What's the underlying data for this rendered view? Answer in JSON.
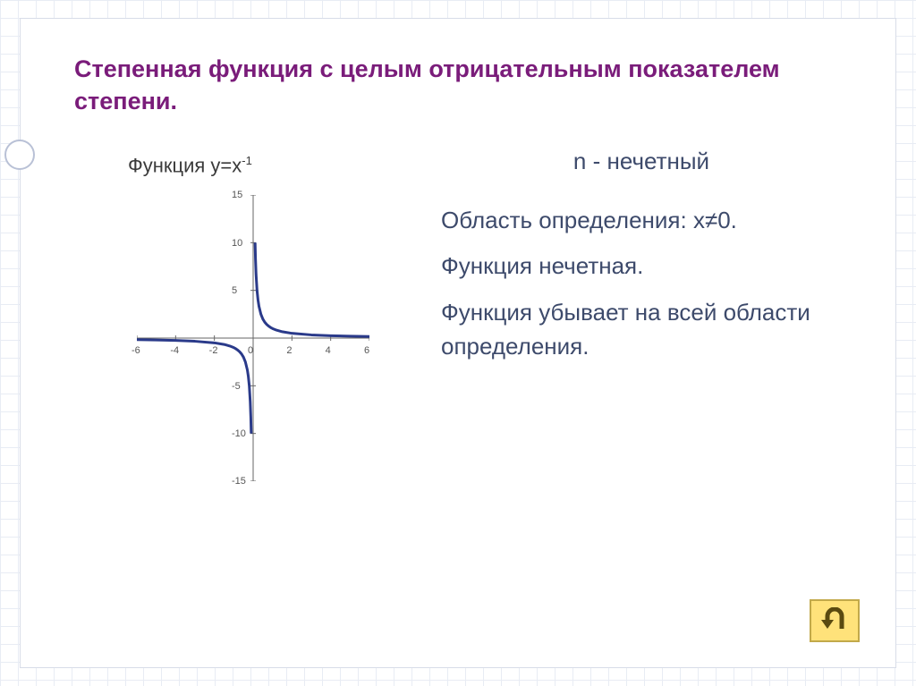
{
  "title": "Степенная функция с целым отрицательным показателем степени.",
  "chart": {
    "title_prefix": "Функция y=x",
    "title_sup": "-1",
    "type": "line",
    "x_domain": [
      -6,
      6
    ],
    "y_domain": [
      -15,
      15
    ],
    "x_ticks": [
      -6,
      -4,
      -2,
      0,
      2,
      4,
      6
    ],
    "y_ticks": [
      -15,
      -10,
      -5,
      0,
      5,
      10,
      15
    ],
    "tick_fontsize": 11,
    "axis_color": "#666666",
    "curve_color": "#2a3a8a",
    "curve_width": 3,
    "background": "#ffffff",
    "series_neg_x": [
      -6,
      -5,
      -4,
      -3,
      -2,
      -1.5,
      -1.2,
      -1,
      -0.9,
      -0.8,
      -0.7,
      -0.6,
      -0.5,
      -0.4,
      -0.3,
      -0.25,
      -0.2,
      -0.15,
      -0.12,
      -0.1
    ],
    "series_pos_x": [
      0.1,
      0.12,
      0.15,
      0.2,
      0.25,
      0.3,
      0.4,
      0.5,
      0.6,
      0.7,
      0.8,
      0.9,
      1,
      1.2,
      1.5,
      2,
      3,
      4,
      5,
      6
    ]
  },
  "text": {
    "heading": "n - нечетный",
    "p1": "Область определения: x≠0.",
    "p2": "Функция нечетная.",
    "p3": "Функция  убывает на всей области определения."
  },
  "colors": {
    "title": "#7a1c7a",
    "body_text": "#3d4a6b",
    "grid_bg": "#e8ecf4",
    "nav_fill": "#ffe27a",
    "nav_border": "#c2a94a",
    "nav_arrow": "#5a4a10"
  }
}
